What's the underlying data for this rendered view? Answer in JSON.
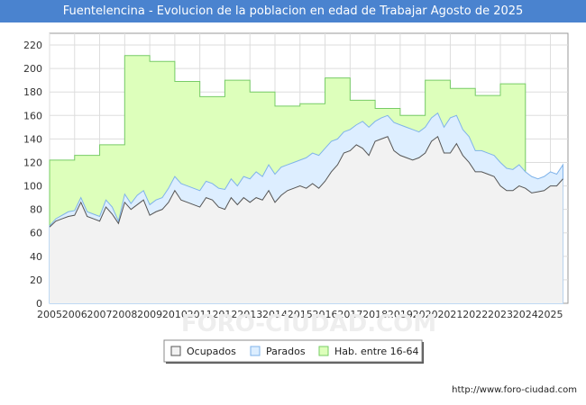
{
  "chart_data": {
    "type": "area",
    "title": "Fuentelencina - Evolucion de la poblacion en edad de Trabajar Agosto de 2025",
    "watermark": "FORO-CIUDAD.COM",
    "footer": "http://www.foro-ciudad.com",
    "x_labels": [
      "2005",
      "2006",
      "2007",
      "2008",
      "2009",
      "2010",
      "2011",
      "2012",
      "2013",
      "2014",
      "2015",
      "2016",
      "2017",
      "2018",
      "2019",
      "2020",
      "2021",
      "2022",
      "2023",
      "2024",
      "2025"
    ],
    "y_ticks": [
      "0",
      "20",
      "40",
      "60",
      "80",
      "100",
      "120",
      "140",
      "160",
      "180",
      "200",
      "220"
    ],
    "ylim": [
      0,
      230
    ],
    "xlim": [
      2005,
      2025.7
    ],
    "legend": [
      {
        "name": "Ocupados",
        "color": "#f2f2f2"
      },
      {
        "name": "Parados",
        "color": "#ddeeff"
      },
      {
        "name": "Hab. entre 16-64",
        "color": "#ddffbb"
      }
    ],
    "colors": {
      "ocupados_fill": "#f2f2f2",
      "ocupados_line": "#555555",
      "total_fill": "#ddeeff",
      "total_line": "#7fb3ea",
      "hab_fill": "#ddffbb",
      "hab_line": "#77cc66",
      "title_bg": "#4a83cf"
    },
    "hab_16_64": [
      {
        "year": 2005,
        "value": 122
      },
      {
        "year": 2006,
        "value": 126
      },
      {
        "year": 2007,
        "value": 135
      },
      {
        "year": 2008,
        "value": 211
      },
      {
        "year": 2009,
        "value": 206
      },
      {
        "year": 2010,
        "value": 189
      },
      {
        "year": 2011,
        "value": 176
      },
      {
        "year": 2012,
        "value": 190
      },
      {
        "year": 2013,
        "value": 180
      },
      {
        "year": 2014,
        "value": 168
      },
      {
        "year": 2015,
        "value": 170
      },
      {
        "year": 2016,
        "value": 192
      },
      {
        "year": 2017,
        "value": 173
      },
      {
        "year": 2018,
        "value": 166
      },
      {
        "year": 2019,
        "value": 160
      },
      {
        "year": 2020,
        "value": 190
      },
      {
        "year": 2021,
        "value": 183
      },
      {
        "year": 2022,
        "value": 177
      },
      {
        "year": 2023,
        "value": 187
      }
    ],
    "series": [
      {
        "name": "Ocupados + Parados",
        "x": [
          2005,
          2005.25,
          2005.5,
          2005.75,
          2006,
          2006.25,
          2006.5,
          2006.75,
          2007,
          2007.25,
          2007.5,
          2007.75,
          2008,
          2008.25,
          2008.5,
          2008.75,
          2009,
          2009.25,
          2009.5,
          2009.75,
          2010,
          2010.25,
          2010.5,
          2010.75,
          2011,
          2011.25,
          2011.5,
          2011.75,
          2012,
          2012.25,
          2012.5,
          2012.75,
          2013,
          2013.25,
          2013.5,
          2013.75,
          2014,
          2014.25,
          2014.5,
          2014.75,
          2015,
          2015.25,
          2015.5,
          2015.75,
          2016,
          2016.25,
          2016.5,
          2016.75,
          2017,
          2017.25,
          2017.5,
          2017.75,
          2018,
          2018.25,
          2018.5,
          2018.75,
          2019,
          2019.25,
          2019.5,
          2019.75,
          2020,
          2020.25,
          2020.5,
          2020.75,
          2021,
          2021.25,
          2021.5,
          2021.75,
          2022,
          2022.25,
          2022.5,
          2022.75,
          2023,
          2023.25,
          2023.5,
          2023.75,
          2024,
          2024.25,
          2024.5,
          2024.75,
          2025,
          2025.25,
          2025.5
        ],
        "values": [
          66,
          72,
          75,
          78,
          79,
          90,
          78,
          76,
          74,
          88,
          82,
          70,
          93,
          85,
          92,
          96,
          84,
          88,
          90,
          98,
          108,
          102,
          100,
          98,
          96,
          104,
          102,
          98,
          97,
          106,
          100,
          108,
          106,
          112,
          108,
          118,
          110,
          116,
          118,
          120,
          122,
          124,
          128,
          126,
          132,
          138,
          140,
          146,
          148,
          152,
          155,
          150,
          155,
          158,
          160,
          154,
          152,
          150,
          148,
          146,
          150,
          158,
          162,
          150,
          158,
          160,
          148,
          142,
          130,
          130,
          128,
          126,
          120,
          115,
          114,
          118,
          112,
          108,
          106,
          108,
          112,
          110,
          118
        ]
      },
      {
        "name": "Ocupados",
        "x": [
          2005,
          2005.25,
          2005.5,
          2005.75,
          2006,
          2006.25,
          2006.5,
          2006.75,
          2007,
          2007.25,
          2007.5,
          2007.75,
          2008,
          2008.25,
          2008.5,
          2008.75,
          2009,
          2009.25,
          2009.5,
          2009.75,
          2010,
          2010.25,
          2010.5,
          2010.75,
          2011,
          2011.25,
          2011.5,
          2011.75,
          2012,
          2012.25,
          2012.5,
          2012.75,
          2013,
          2013.25,
          2013.5,
          2013.75,
          2014,
          2014.25,
          2014.5,
          2014.75,
          2015,
          2015.25,
          2015.5,
          2015.75,
          2016,
          2016.25,
          2016.5,
          2016.75,
          2017,
          2017.25,
          2017.5,
          2017.75,
          2018,
          2018.25,
          2018.5,
          2018.75,
          2019,
          2019.25,
          2019.5,
          2019.75,
          2020,
          2020.25,
          2020.5,
          2020.75,
          2021,
          2021.25,
          2021.5,
          2021.75,
          2022,
          2022.25,
          2022.5,
          2022.75,
          2023,
          2023.25,
          2023.5,
          2023.75,
          2024,
          2024.25,
          2024.5,
          2024.75,
          2025,
          2025.25,
          2025.5
        ],
        "values": [
          65,
          70,
          72,
          74,
          75,
          86,
          74,
          72,
          70,
          82,
          76,
          68,
          86,
          80,
          84,
          88,
          75,
          78,
          80,
          86,
          96,
          88,
          86,
          84,
          82,
          90,
          88,
          82,
          80,
          90,
          84,
          90,
          86,
          90,
          88,
          96,
          86,
          92,
          96,
          98,
          100,
          98,
          102,
          98,
          104,
          112,
          118,
          128,
          130,
          135,
          132,
          126,
          138,
          140,
          142,
          130,
          126,
          124,
          122,
          124,
          128,
          138,
          142,
          128,
          128,
          136,
          126,
          120,
          112,
          112,
          110,
          108,
          100,
          96,
          96,
          100,
          98,
          94,
          95,
          96,
          100,
          100,
          106
        ]
      }
    ]
  }
}
